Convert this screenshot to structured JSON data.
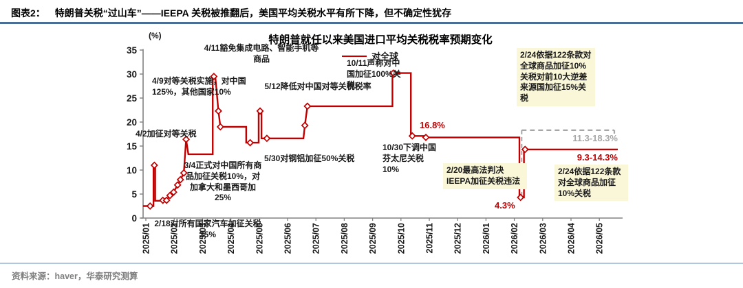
{
  "header": {
    "tag": "图表2：",
    "title": "特朗普关税“过山车”——IEEPA 关税被推翻后，美国平均关税水平有所下降，但不确定性犹存"
  },
  "footer": {
    "source": "资料来源：haver，华泰研究测算"
  },
  "colors": {
    "series_red": "#C00000",
    "dashed_gray": "#a6a6a6",
    "annotation_highlight_bg": "#faf7d8",
    "axis_gray": "#808080",
    "header_rule": "#4a6f96",
    "footer_rule": "#aec6de"
  },
  "chart_data": {
    "type": "line",
    "title": "特朗普就任以来美国进口平均关税税率预期变化",
    "unit_label": "(%)",
    "legend_position": "top",
    "legend": [
      {
        "name": "对全球",
        "color": "#C00000"
      }
    ],
    "ylim": [
      0,
      35
    ],
    "y_ticks": [
      0,
      5,
      10,
      15,
      20,
      25,
      30,
      35
    ],
    "x_labels": [
      "2025/01",
      "2025/02",
      "2025/03",
      "2025/04",
      "2025/05",
      "2025/06",
      "2025/07",
      "2025/08",
      "2025/09",
      "2025/10",
      "2025/11",
      "2025/12",
      "2026/01",
      "2026/02",
      "2026/03",
      "2026/04",
      "2026/05"
    ],
    "series": [
      {
        "name": "对全球",
        "color": "#C00000",
        "points": [
          [
            -0.1,
            2.5
          ],
          [
            0.15,
            2.5
          ],
          [
            0.27,
            2.5
          ],
          [
            0.27,
            11
          ],
          [
            0.33,
            11
          ],
          [
            0.33,
            3.6
          ],
          [
            0.5,
            3.6
          ],
          [
            0.6,
            3.7
          ],
          [
            0.73,
            3.7
          ],
          [
            0.85,
            4.7
          ],
          [
            0.98,
            5.4
          ],
          [
            1.12,
            6.9
          ],
          [
            1.22,
            8.0
          ],
          [
            1.34,
            9.4
          ],
          [
            1.42,
            16.4
          ],
          [
            1.5,
            13.3
          ],
          [
            2.36,
            13.3
          ],
          [
            2.36,
            29.5
          ],
          [
            2.45,
            29.5
          ],
          [
            2.56,
            22.3
          ],
          [
            2.63,
            19.0
          ],
          [
            3.54,
            19.0
          ],
          [
            3.54,
            15.7
          ],
          [
            3.68,
            15.7
          ],
          [
            3.98,
            15.7
          ],
          [
            3.98,
            22.3
          ],
          [
            4.08,
            22.3
          ],
          [
            4.08,
            16.6
          ],
          [
            4.27,
            16.6
          ],
          [
            5.56,
            16.6
          ],
          [
            5.61,
            19.3
          ],
          [
            5.7,
            23.3
          ],
          [
            8.7,
            23.3
          ],
          [
            8.7,
            30.2
          ],
          [
            9.35,
            30.2
          ],
          [
            9.35,
            17.1
          ],
          [
            9.85,
            17.1
          ],
          [
            9.85,
            16.8
          ],
          [
            13.18,
            16.8
          ],
          [
            13.18,
            4.3
          ],
          [
            13.34,
            4.3
          ],
          [
            13.34,
            14.3
          ],
          [
            16.65,
            14.3
          ]
        ],
        "markers": [
          [
            0.15,
            2.5
          ],
          [
            0.3,
            11
          ],
          [
            0.6,
            3.7
          ],
          [
            0.73,
            3.7
          ],
          [
            0.85,
            4.7
          ],
          [
            0.98,
            5.4
          ],
          [
            1.12,
            6.9
          ],
          [
            1.22,
            8.0
          ],
          [
            1.34,
            9.4
          ],
          [
            1.42,
            16.4
          ],
          [
            2.4,
            29.5
          ],
          [
            2.56,
            22.3
          ],
          [
            2.63,
            19.0
          ],
          [
            3.68,
            15.7
          ],
          [
            4.03,
            22.3
          ],
          [
            4.27,
            16.6
          ],
          [
            5.61,
            19.3
          ],
          [
            5.7,
            23.3
          ],
          [
            8.73,
            30.2
          ],
          [
            9.4,
            17.1
          ],
          [
            9.88,
            16.8
          ],
          [
            13.22,
            4.3
          ],
          [
            13.38,
            14.3
          ]
        ]
      }
    ],
    "uncertainty": {
      "upper_value": 18.3,
      "upper_range_label": "11.3-18.3%",
      "line_value": 14.3,
      "line_range_label": "9.3-14.3%",
      "start_month": 13.26,
      "end_month": 16.55,
      "color": "#a6a6a6"
    },
    "value_labels": [
      {
        "id": "v168",
        "text": "16.8%",
        "style": "red"
      },
      {
        "id": "v43",
        "text": "4.3%",
        "style": "red"
      },
      {
        "id": "v113",
        "text": "11.3-18.3%",
        "style": "gray"
      },
      {
        "id": "v93",
        "text": "9.3-14.3%",
        "style": "red"
      }
    ],
    "annotations": [
      {
        "id": "a411",
        "text": "4/11豁免集成电路、智能手机等商品",
        "highlight": false
      },
      {
        "id": "a1011",
        "text": "10/11声称对中国加征100%关税",
        "highlight": false
      },
      {
        "id": "a224top",
        "text": "2/24依据122条款对全球商品加征10%关税对前10大逆差来源国加征15%关税",
        "highlight": true
      },
      {
        "id": "a49",
        "text": "4/9对等关税实施，对中国125%，其他国家10%",
        "highlight": false
      },
      {
        "id": "a512",
        "text": "5/12降低对中国对等关税税率",
        "highlight": false
      },
      {
        "id": "a42",
        "text": "4/2加征对等关税",
        "highlight": false
      },
      {
        "id": "a34",
        "text": "3/4正式对中国所有商品加征关税10%，对加拿大和墨西哥加25%",
        "highlight": false
      },
      {
        "id": "a530",
        "text": "5/30对钢铝加征50%关税",
        "highlight": false
      },
      {
        "id": "a1030",
        "text": "10/30下调中国芬太尼关税10%",
        "highlight": false
      },
      {
        "id": "a220",
        "text": "2/20最高法判决IEEPA加征关税违法",
        "highlight": true
      },
      {
        "id": "a224bot",
        "text": "2/24依据122条款对全球商品加征10%关税",
        "highlight": true
      },
      {
        "id": "a218",
        "text": "2/18对所有国家汽车加征关税25%",
        "highlight": false
      }
    ]
  }
}
